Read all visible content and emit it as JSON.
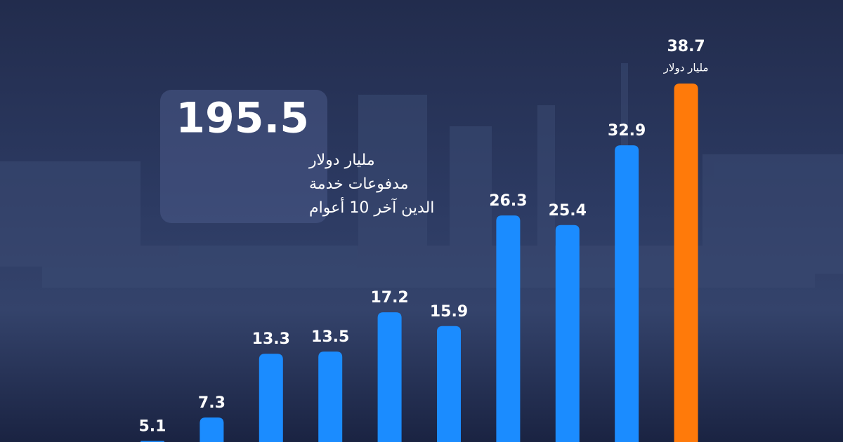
{
  "chart_data": {
    "type": "bar",
    "values": [
      5.1,
      7.3,
      13.3,
      13.5,
      17.2,
      15.9,
      26.3,
      25.4,
      32.9,
      38.7
    ],
    "colors": [
      "#1b8cff",
      "#1b8cff",
      "#1b8cff",
      "#1b8cff",
      "#1b8cff",
      "#1b8cff",
      "#1b8cff",
      "#1b8cff",
      "#1b8cff",
      "#ff7a0a"
    ],
    "unit": "مليار دولار",
    "ylim": [
      5,
      43
    ],
    "annotation": {
      "value": 195.5,
      "lines": [
        "مليار دولار",
        "مدفوعات خدمة",
        "الدين آخر 10 أعوام"
      ]
    }
  }
}
